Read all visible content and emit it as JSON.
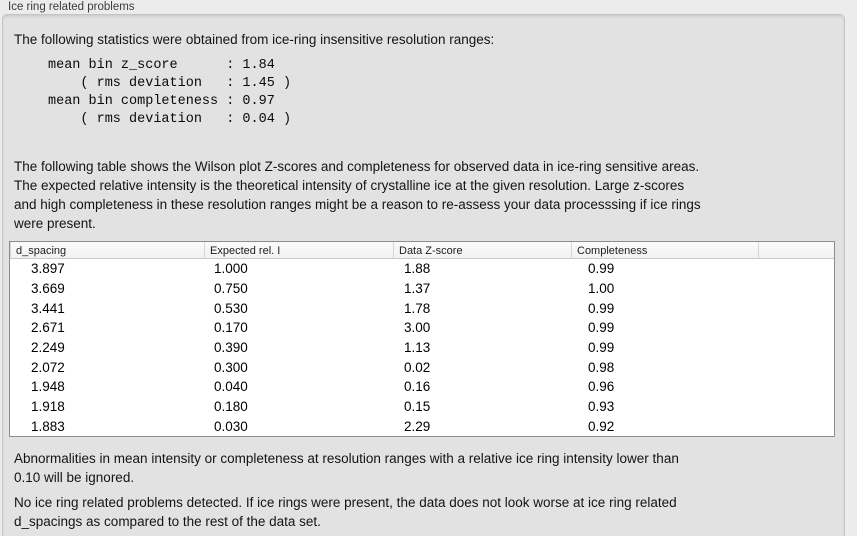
{
  "group_box": {
    "label": "Ice ring related problems"
  },
  "intro_text": "The following statistics were obtained from ice-ring insensitive resolution ranges:",
  "stats": {
    "mean_bin_z_score": "1.84",
    "z_score_rms_deviation": "1.45",
    "mean_bin_completeness": "0.97",
    "completeness_rms_deviation": "0.04",
    "block": "mean bin z_score      : 1.84\n    ( rms deviation   : 1.45 )\nmean bin completeness : 0.97\n    ( rms deviation   : 0.04 )"
  },
  "wilson_text": "The following table shows the Wilson plot Z-scores and completeness for observed data in ice-ring sensitive areas.\nThe expected relative intensity is the theoretical intensity of crystalline ice at the given resolution. Large z-scores\nand high completeness in these resolution ranges might be a reason to re-assess your data processsing if ice rings\nwere present.",
  "table": {
    "columns": [
      "d_spacing",
      "Expected rel. I",
      "Data Z-score",
      "Completeness"
    ],
    "rows": [
      [
        "3.897",
        "1.000",
        "1.88",
        "0.99"
      ],
      [
        "3.669",
        "0.750",
        "1.37",
        "1.00"
      ],
      [
        "3.441",
        "0.530",
        "1.78",
        "0.99"
      ],
      [
        "2.671",
        "0.170",
        "3.00",
        "0.99"
      ],
      [
        "2.249",
        "0.390",
        "1.13",
        "0.99"
      ],
      [
        "2.072",
        "0.300",
        "0.02",
        "0.98"
      ],
      [
        "1.948",
        "0.040",
        "0.16",
        "0.96"
      ],
      [
        "1.918",
        "0.180",
        "0.15",
        "0.93"
      ],
      [
        "1.883",
        "0.030",
        "2.29",
        "0.92"
      ]
    ]
  },
  "ignore_note": "Abnormalities in mean intensity or completeness at resolution ranges with a relative ice ring intensity lower than\n0.10 will be ignored.",
  "conclusion": "No ice ring related problems detected. If ice rings were present, the data does not look worse at ice ring related\nd_spacings as compared to the rest of the data set.",
  "colors": {
    "window_bg": "#ececec",
    "groupbox_bg": "#e2e2e2",
    "groupbox_border": "#c4c4c4",
    "table_bg": "#ffffff",
    "table_border": "#8d8d8d",
    "table_header_bg": "#f6f6f6",
    "text": "#141414"
  }
}
